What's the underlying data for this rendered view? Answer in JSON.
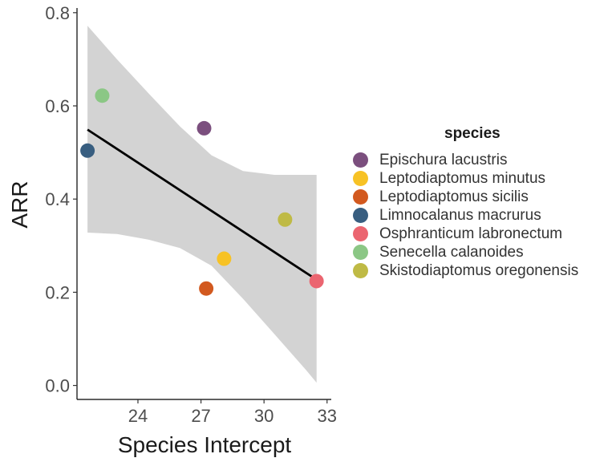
{
  "chart_data": {
    "type": "scatter",
    "xlabel": "Species Intercept",
    "ylabel": "ARR",
    "xlim": [
      21.1,
      33.2
    ],
    "ylim": [
      -0.03,
      0.81
    ],
    "x_ticks": [
      24,
      27,
      30,
      33
    ],
    "y_ticks": [
      0.0,
      0.2,
      0.4,
      0.6,
      0.8
    ],
    "y_tick_labels": [
      "0.0",
      "0.2",
      "0.4",
      "0.6",
      "0.8"
    ],
    "legend_title": "species",
    "legend_position": "right",
    "grid": false,
    "points": [
      {
        "species": "Epischura lacustris",
        "x": 27.15,
        "y": 0.552,
        "color": "#7B4F7E"
      },
      {
        "species": "Leptodiaptomus minutus",
        "x": 28.1,
        "y": 0.272,
        "color": "#F7C225"
      },
      {
        "species": "Leptodiaptomus sicilis",
        "x": 27.25,
        "y": 0.208,
        "color": "#D2591F"
      },
      {
        "species": "Limnocalanus macrurus",
        "x": 21.6,
        "y": 0.504,
        "color": "#385E80"
      },
      {
        "species": "Osphranticum labronectum",
        "x": 32.5,
        "y": 0.224,
        "color": "#EB6570"
      },
      {
        "species": "Senecella calanoides",
        "x": 22.3,
        "y": 0.622,
        "color": "#8BC785"
      },
      {
        "species": "Skistodiaptomus oregonensis",
        "x": 31.0,
        "y": 0.356,
        "color": "#BFBA45"
      }
    ],
    "fit_line": {
      "x": [
        21.6,
        32.5
      ],
      "y": [
        0.549,
        0.227
      ],
      "color": "#000000"
    },
    "confidence_band": {
      "x": [
        21.6,
        23.0,
        24.5,
        26.0,
        27.5,
        29.0,
        30.5,
        32.0,
        32.5
      ],
      "upper": [
        0.772,
        0.7,
        0.627,
        0.556,
        0.494,
        0.46,
        0.452,
        0.452,
        0.452
      ],
      "lower": [
        0.328,
        0.325,
        0.313,
        0.295,
        0.257,
        0.186,
        0.11,
        0.033,
        0.006
      ],
      "color": "#D3D3D3"
    }
  }
}
